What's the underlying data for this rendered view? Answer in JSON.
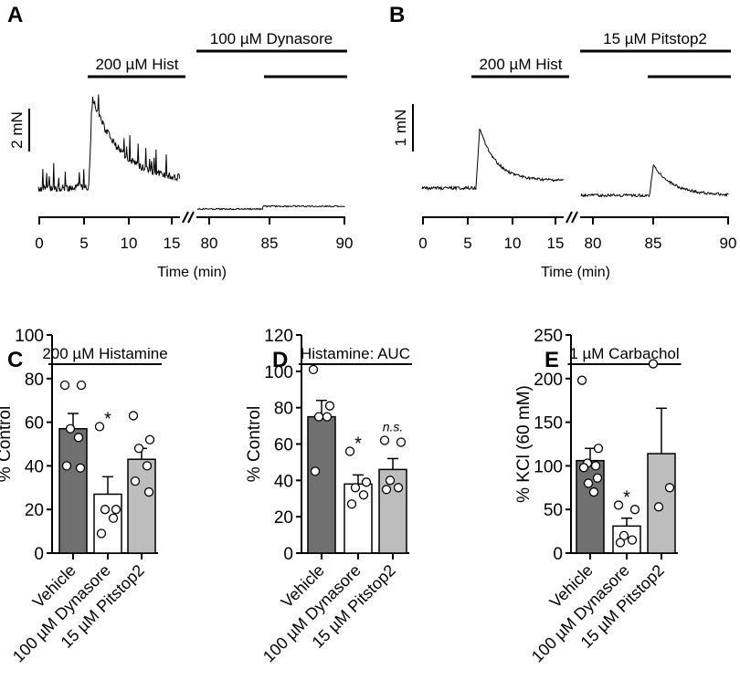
{
  "panels": {
    "A": "A",
    "B": "B",
    "C": "C",
    "D": "D",
    "E": "E"
  },
  "traces": {
    "A": {
      "hist_label": "200 µM Hist",
      "drug_label": "100 µM Dynasore",
      "scale_label": "2 mN",
      "xlabel": "Time (min)",
      "ticks1": [
        "0",
        "5",
        "10",
        "15"
      ],
      "ticks2": [
        "80",
        "85",
        "90"
      ]
    },
    "B": {
      "hist_label": "200 µM Hist",
      "drug_label": "15 µM Pitstop2",
      "scale_label": "1 mN",
      "xlabel": "Time (min)",
      "ticks1": [
        "0",
        "5",
        "10",
        "15"
      ],
      "ticks2": [
        "80",
        "85",
        "90"
      ]
    }
  },
  "chart_data": [
    {
      "type": "bar",
      "panel": "C",
      "title": "200 µM Histamine",
      "ylabel": "% Control",
      "ylim": [
        0,
        100
      ],
      "yticks": [
        "0",
        "20",
        "40",
        "60",
        "80",
        "100"
      ],
      "categories": [
        "Vehicle",
        "100 µM Dynasore",
        "15 µM Pitstop2"
      ],
      "values": [
        57,
        27,
        43
      ],
      "sem": [
        7,
        8,
        5
      ],
      "points": [
        [
          77,
          77,
          57,
          53,
          40,
          39
        ],
        [
          58,
          20,
          20,
          16,
          9
        ],
        [
          63,
          52,
          48,
          40,
          33,
          28
        ]
      ],
      "annotations": [
        "",
        "*",
        ""
      ],
      "colors": [
        "#707070",
        "#ffffff",
        "#bdbdbd"
      ]
    },
    {
      "type": "bar",
      "panel": "D",
      "title": "Histamine: AUC",
      "ylabel": "% Control",
      "ylim": [
        0,
        120
      ],
      "yticks": [
        "0",
        "20",
        "40",
        "60",
        "80",
        "100",
        "120"
      ],
      "categories": [
        "Vehicle",
        "100 µM Dynasore",
        "15 µM Pitstop2"
      ],
      "values": [
        75,
        38,
        46
      ],
      "sem": [
        9,
        5,
        6
      ],
      "points": [
        [
          101,
          81,
          75,
          75,
          45
        ],
        [
          56,
          39,
          36,
          32,
          27
        ],
        [
          62,
          61,
          40,
          36,
          35
        ]
      ],
      "annotations": [
        "",
        "*",
        "n.s."
      ],
      "colors": [
        "#707070",
        "#ffffff",
        "#bdbdbd"
      ]
    },
    {
      "type": "bar",
      "panel": "E",
      "title": "1 µM Carbachol",
      "ylabel": "% KCl (60 mM)",
      "ylim": [
        0,
        250
      ],
      "yticks": [
        "0",
        "50",
        "100",
        "150",
        "200",
        "250"
      ],
      "categories": [
        "Vehicle",
        "100 µM Dynasore",
        "15 µM Pitstop2"
      ],
      "values": [
        106,
        31,
        114
      ],
      "sem": [
        14,
        9,
        52
      ],
      "points": [
        [
          198,
          120,
          103,
          100,
          98,
          86,
          80,
          70
        ],
        [
          55,
          50,
          20,
          15,
          12
        ],
        [
          217,
          75,
          53
        ]
      ],
      "annotations": [
        "",
        "*",
        ""
      ],
      "colors": [
        "#707070",
        "#ffffff",
        "#bdbdbd"
      ]
    }
  ]
}
